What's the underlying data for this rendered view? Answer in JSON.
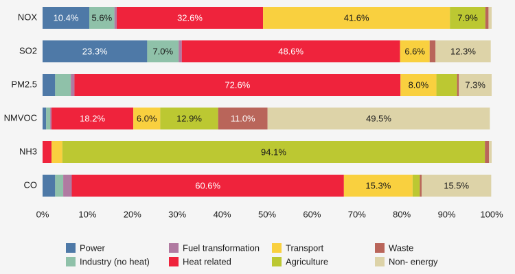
{
  "chart_data": {
    "type": "bar",
    "orientation": "horizontal",
    "stacked": true,
    "title": "",
    "xlabel": "",
    "ylabel": "",
    "xlim": [
      0,
      100
    ],
    "x_ticks": [
      "0%",
      "10%",
      "20%",
      "30%",
      "40%",
      "50%",
      "60%",
      "70%",
      "80%",
      "90%",
      "100%"
    ],
    "grid": false,
    "legend_position": "bottom",
    "categories": [
      "NOX",
      "SO2",
      "PM2.5",
      "NMVOC",
      "NH3",
      "CO"
    ],
    "series": [
      {
        "name": "Power",
        "color": "#4e79a7",
        "values": [
          10.4,
          23.3,
          2.8,
          0.8,
          0.0,
          2.8
        ]
      },
      {
        "name": "Industry (no heat)",
        "color": "#8fc1a9",
        "values": [
          5.6,
          7.0,
          3.5,
          0.9,
          0.0,
          1.8
        ]
      },
      {
        "name": "Fuel transformation",
        "color": "#b07aa1",
        "values": [
          0.5,
          0.7,
          0.8,
          0.3,
          0.0,
          1.9
        ]
      },
      {
        "name": "Heat related",
        "color": "#ef233c",
        "values": [
          32.6,
          48.6,
          72.6,
          18.2,
          2.0,
          60.6
        ]
      },
      {
        "name": "Transport",
        "color": "#f9d03f",
        "values": [
          41.6,
          6.6,
          8.0,
          6.0,
          2.4,
          15.3
        ]
      },
      {
        "name": "Agriculture",
        "color": "#bcc832",
        "values": [
          7.9,
          0.0,
          4.6,
          12.9,
          94.1,
          1.6
        ]
      },
      {
        "name": "Waste",
        "color": "#b9655a",
        "values": [
          0.7,
          1.3,
          0.4,
          11.0,
          0.9,
          0.4
        ]
      },
      {
        "name": "Non- energy",
        "color": "#ddd3a8",
        "values": [
          0.7,
          12.3,
          7.3,
          49.5,
          0.6,
          15.5
        ]
      }
    ],
    "data_labels": [
      {
        "category": "NOX",
        "series": "Power",
        "text": "10.4%"
      },
      {
        "category": "NOX",
        "series": "Industry (no heat)",
        "text": "5.6%"
      },
      {
        "category": "NOX",
        "series": "Heat related",
        "text": "32.6%"
      },
      {
        "category": "NOX",
        "series": "Transport",
        "text": "41.6%"
      },
      {
        "category": "NOX",
        "series": "Agriculture",
        "text": "7.9%"
      },
      {
        "category": "SO2",
        "series": "Power",
        "text": "23.3%"
      },
      {
        "category": "SO2",
        "series": "Industry (no heat)",
        "text": "7.0%"
      },
      {
        "category": "SO2",
        "series": "Heat related",
        "text": "48.6%"
      },
      {
        "category": "SO2",
        "series": "Transport",
        "text": "6.6%"
      },
      {
        "category": "SO2",
        "series": "Non- energy",
        "text": "12.3%"
      },
      {
        "category": "PM2.5",
        "series": "Heat related",
        "text": "72.6%"
      },
      {
        "category": "PM2.5",
        "series": "Transport",
        "text": "8.0%"
      },
      {
        "category": "PM2.5",
        "series": "Non- energy",
        "text": "7.3%"
      },
      {
        "category": "NMVOC",
        "series": "Heat related",
        "text": "18.2%"
      },
      {
        "category": "NMVOC",
        "series": "Transport",
        "text": "6.0%"
      },
      {
        "category": "NMVOC",
        "series": "Agriculture",
        "text": "12.9%"
      },
      {
        "category": "NMVOC",
        "series": "Waste",
        "text": "11.0%"
      },
      {
        "category": "NMVOC",
        "series": "Non- energy",
        "text": "49.5%"
      },
      {
        "category": "NH3",
        "series": "Agriculture",
        "text": "94.1%"
      },
      {
        "category": "CO",
        "series": "Heat related",
        "text": "60.6%"
      },
      {
        "category": "CO",
        "series": "Transport",
        "text": "15.3%"
      },
      {
        "category": "CO",
        "series": "Non- energy",
        "text": "15.5%"
      }
    ],
    "legend_order": [
      "Power",
      "Fuel transformation",
      "Transport",
      "Waste",
      "Industry (no heat)",
      "Heat related",
      "Agriculture",
      "Non- energy"
    ],
    "white_label_series": [
      "Power",
      "Heat related",
      "Waste"
    ]
  }
}
